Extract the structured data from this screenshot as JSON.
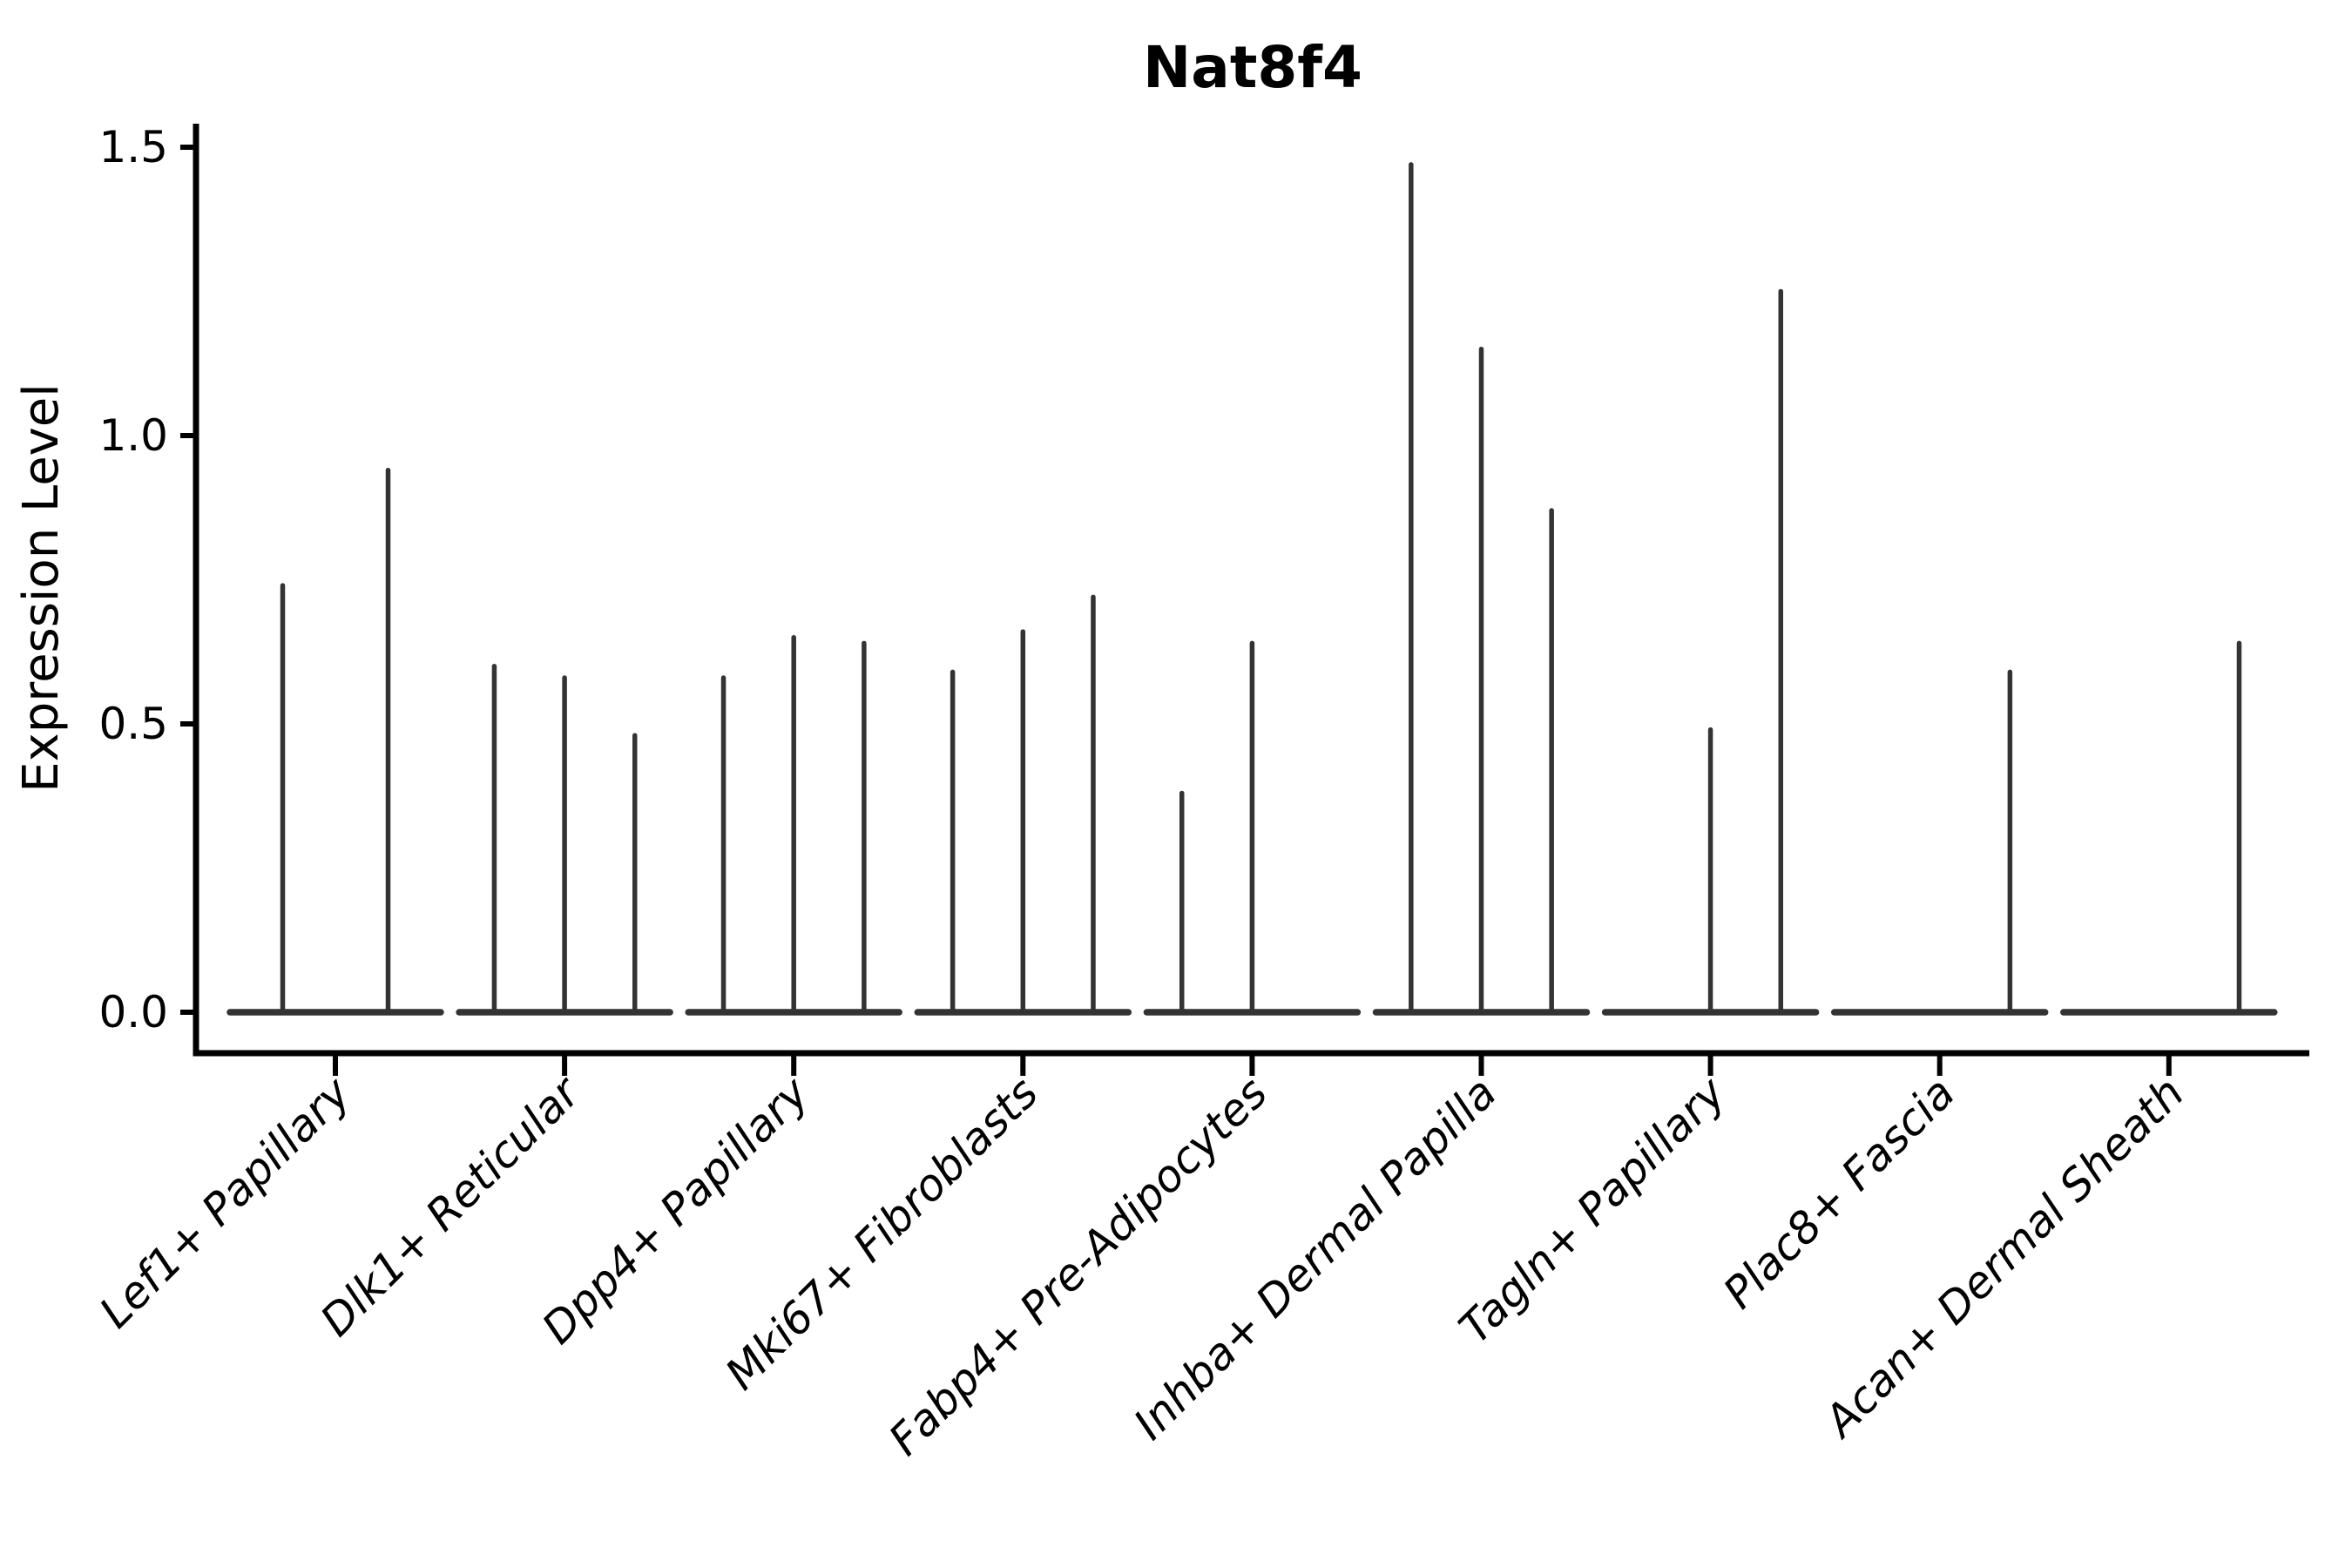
{
  "chart_data": {
    "type": "violin",
    "title": "Nat8f4",
    "ylabel": "Expression Level",
    "xlabel": "",
    "ylim": [
      0.0,
      1.55
    ],
    "yticks": [
      0.0,
      0.5,
      1.0,
      1.5
    ],
    "ytick_labels": [
      "0.0",
      "0.5",
      "1.0",
      "1.5"
    ],
    "legend": "none",
    "grid": false,
    "categories": [
      "Lef1+ Papillary",
      "Dlk1+ Reticular",
      "Dpp4+ Papillary",
      "Mki67+ Fibroblasts",
      "Fabp4+ Pre-Adipocytes",
      "Inhba+ Dermal Papilla",
      "Tagln+ Papillary",
      "Plac8+ Fascia",
      "Acan+ Dermal Sheath"
    ],
    "groups": [
      {
        "label": "Lef1+ Papillary",
        "n_violins": 2,
        "spikes": [
          {
            "violin": 1,
            "max": 0.74
          },
          {
            "violin": 2,
            "max": 0.94
          }
        ]
      },
      {
        "label": "Dlk1+ Reticular",
        "n_violins": 3,
        "spikes": [
          {
            "violin": 1,
            "max": 0.6
          },
          {
            "violin": 2,
            "max": 0.58
          },
          {
            "violin": 3,
            "max": 0.48
          }
        ]
      },
      {
        "label": "Dpp4+ Papillary",
        "n_violins": 3,
        "spikes": [
          {
            "violin": 1,
            "max": 0.58
          },
          {
            "violin": 2,
            "max": 0.65
          },
          {
            "violin": 3,
            "max": 0.64
          }
        ]
      },
      {
        "label": "Mki67+ Fibroblasts",
        "n_violins": 3,
        "spikes": [
          {
            "violin": 1,
            "max": 0.59
          },
          {
            "violin": 2,
            "max": 0.66
          },
          {
            "violin": 3,
            "max": 0.72
          }
        ]
      },
      {
        "label": "Fabp4+ Pre-Adipocytes",
        "n_violins": 3,
        "spikes": [
          {
            "violin": 1,
            "max": 0.38
          },
          {
            "violin": 2,
            "max": 0.64
          }
        ]
      },
      {
        "label": "Inhba+ Dermal Papilla",
        "n_violins": 3,
        "spikes": [
          {
            "violin": 1,
            "max": 1.47
          },
          {
            "violin": 2,
            "max": 1.15
          },
          {
            "violin": 3,
            "max": 0.87
          }
        ]
      },
      {
        "label": "Tagln+ Papillary",
        "n_violins": 3,
        "spikes": [
          {
            "violin": 2,
            "max": 0.49
          },
          {
            "violin": 3,
            "max": 1.25
          }
        ]
      },
      {
        "label": "Plac8+ Fascia",
        "n_violins": 3,
        "spikes": [
          {
            "violin": 3,
            "max": 0.59
          }
        ]
      },
      {
        "label": "Acan+ Dermal Sheath",
        "n_violins": 3,
        "spikes": [
          {
            "violin": 3,
            "max": 0.64
          }
        ]
      }
    ],
    "colors": {
      "violin": "#333333",
      "axis": "#000000",
      "text": "#000000",
      "background": "#ffffff"
    }
  }
}
